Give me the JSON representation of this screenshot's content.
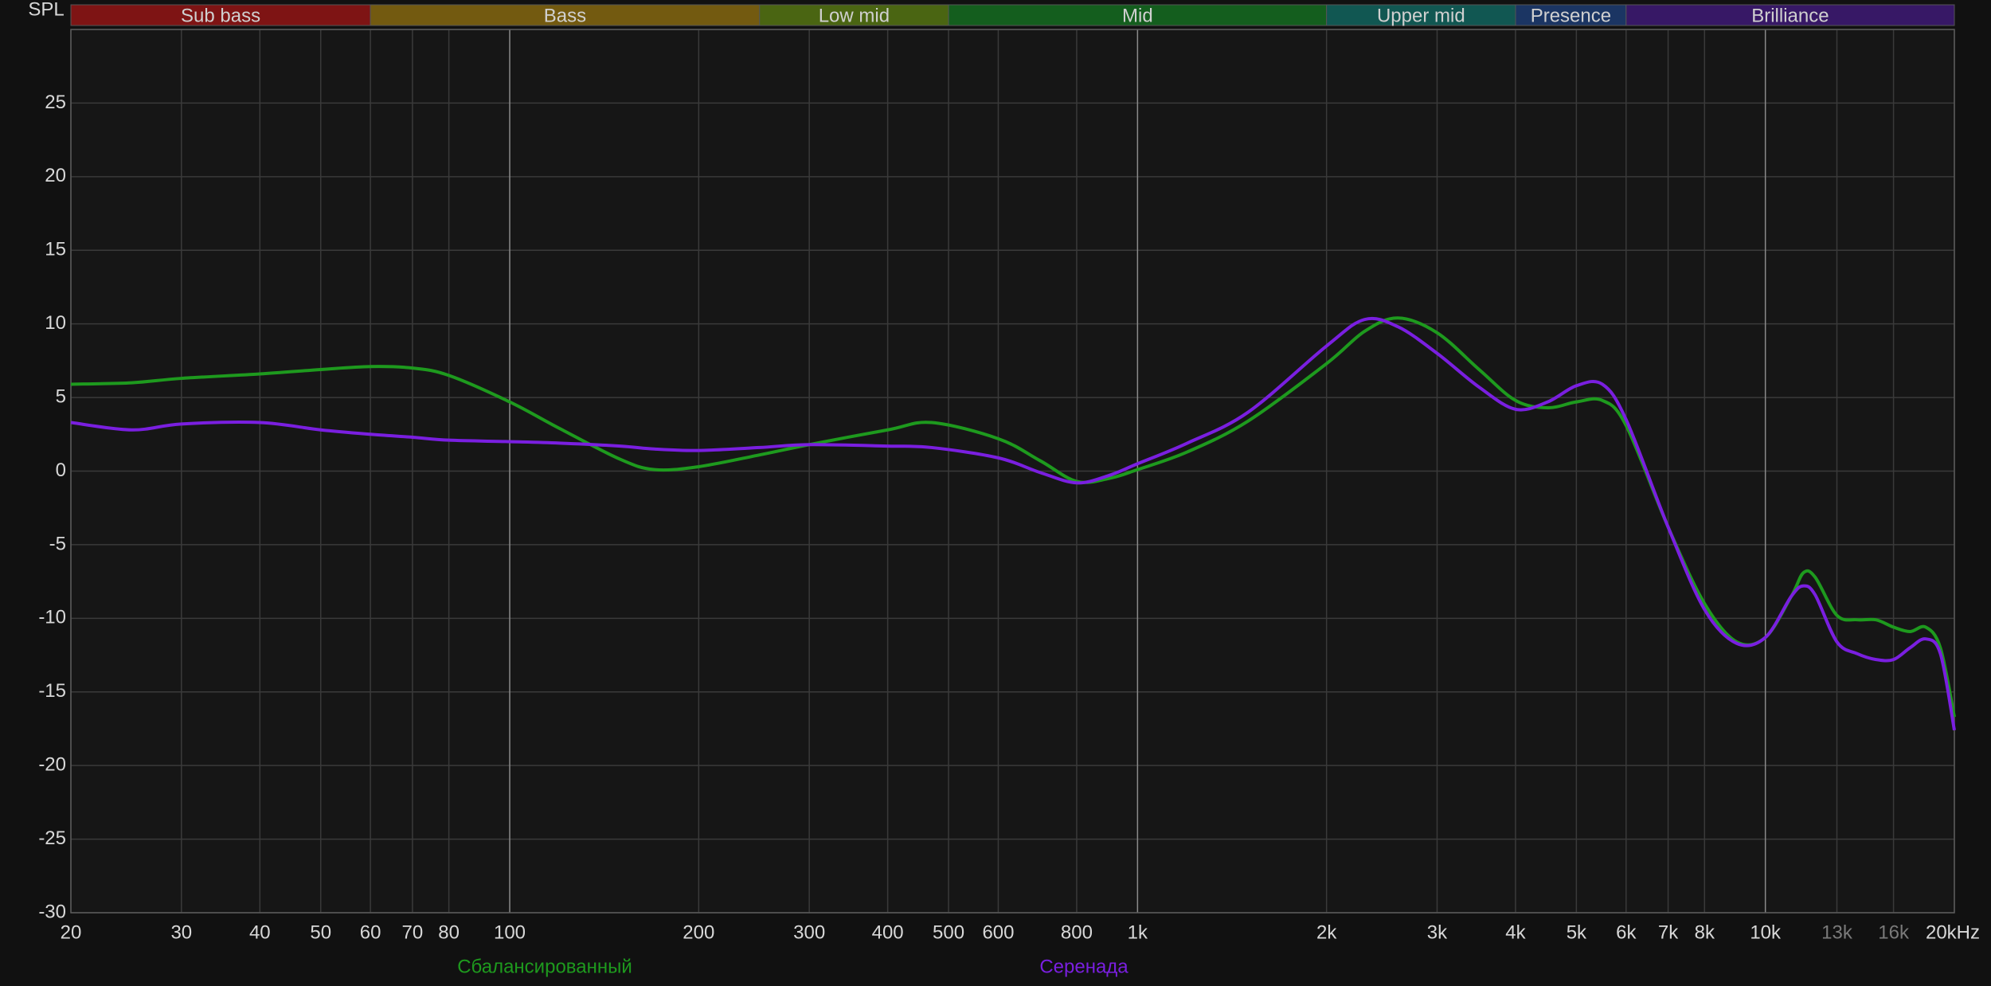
{
  "chart_data": {
    "type": "line",
    "ylabel": "SPL",
    "log_x": true,
    "grid": true,
    "xlim": [
      20,
      20000
    ],
    "ylim": [
      -30,
      30
    ],
    "xticks": [
      20,
      30,
      40,
      50,
      60,
      70,
      80,
      100,
      200,
      300,
      400,
      500,
      600,
      800,
      {
        "value": 1000,
        "label": "1k"
      },
      {
        "value": 2000,
        "label": "2k"
      },
      {
        "value": 3000,
        "label": "3k"
      },
      {
        "value": 4000,
        "label": "4k"
      },
      {
        "value": 5000,
        "label": "5k"
      },
      {
        "value": 6000,
        "label": "6k"
      },
      {
        "value": 7000,
        "label": "7k"
      },
      {
        "value": 8000,
        "label": "8k"
      },
      {
        "value": 10000,
        "label": "10k"
      },
      {
        "value": 13000,
        "label": "13k",
        "color": "#7a7a7a"
      },
      {
        "value": 16000,
        "label": "16k",
        "color": "#7a7a7a"
      },
      {
        "value": 20000,
        "label": "20kHz"
      }
    ],
    "yticks": [
      -30,
      -25,
      -20,
      -15,
      -10,
      -5,
      0,
      5,
      10,
      15,
      20,
      25
    ],
    "bands": [
      {
        "name": "Sub bass",
        "range": [
          20,
          60
        ],
        "color": "#7e1414"
      },
      {
        "name": "Bass",
        "range": [
          60,
          250
        ],
        "color": "#735a10"
      },
      {
        "name": "Low mid",
        "range": [
          250,
          500
        ],
        "color": "#4a6512"
      },
      {
        "name": "Mid",
        "range": [
          500,
          2000
        ],
        "color": "#145e1e"
      },
      {
        "name": "Upper mid",
        "range": [
          2000,
          4000
        ],
        "color": "#115752"
      },
      {
        "name": "Presence",
        "range": [
          4000,
          6000
        ],
        "color": "#1b3563"
      },
      {
        "name": "Brilliance",
        "range": [
          6000,
          20000
        ],
        "color": "#371866"
      }
    ],
    "x": [
      20,
      25,
      30,
      40,
      50,
      60,
      70,
      80,
      100,
      120,
      150,
      170,
      200,
      250,
      300,
      400,
      470,
      600,
      700,
      800,
      900,
      1000,
      1200,
      1500,
      2000,
      2300,
      2600,
      3000,
      3500,
      4000,
      4500,
      5000,
      5500,
      6000,
      7000,
      8000,
      9000,
      10000,
      11000,
      11500,
      12000,
      13000,
      14000,
      15000,
      16000,
      17000,
      18000,
      19000,
      20000
    ],
    "series": [
      {
        "name": "Сбалансированный",
        "color": "#1e9a1e",
        "values": [
          5.9,
          6.0,
          6.3,
          6.6,
          6.9,
          7.1,
          7.0,
          6.5,
          4.7,
          2.9,
          0.8,
          0.1,
          0.3,
          1.1,
          1.8,
          2.8,
          3.3,
          2.2,
          0.7,
          -0.7,
          -0.5,
          0.1,
          1.3,
          3.4,
          7.3,
          9.5,
          10.4,
          9.4,
          6.9,
          4.8,
          4.3,
          4.7,
          4.8,
          3.1,
          -3.8,
          -9.0,
          -11.6,
          -11.3,
          -8.5,
          -6.9,
          -7.2,
          -9.8,
          -10.1,
          -10.1,
          -10.6,
          -10.9,
          -10.6,
          -12,
          -16.7
        ]
      },
      {
        "name": "Серенада",
        "color": "#7a1fe0",
        "values": [
          3.3,
          2.8,
          3.2,
          3.3,
          2.8,
          2.5,
          2.3,
          2.1,
          2.0,
          1.9,
          1.7,
          1.5,
          1.4,
          1.6,
          1.8,
          1.7,
          1.6,
          0.9,
          -0.1,
          -0.8,
          -0.3,
          0.5,
          1.9,
          4.0,
          8.5,
          10.3,
          9.8,
          8.0,
          5.7,
          4.2,
          4.7,
          5.8,
          5.9,
          3.5,
          -3.8,
          -9.4,
          -11.7,
          -11.3,
          -8.5,
          -7.8,
          -8.4,
          -11.6,
          -12.4,
          -12.8,
          -12.8,
          -12.0,
          -11.4,
          -12.4,
          -17.6
        ]
      }
    ]
  }
}
